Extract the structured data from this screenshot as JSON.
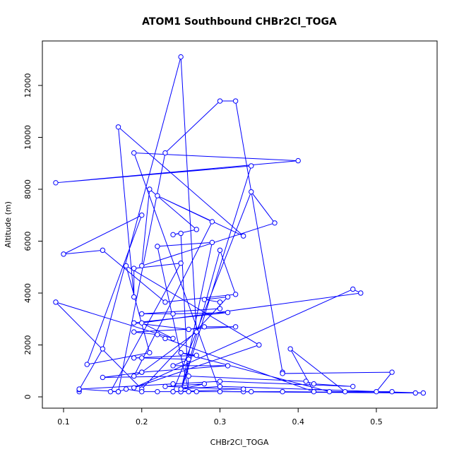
{
  "chart_data": {
    "type": "line",
    "title": "ATOM1 Southbound CHBr2Cl_TOGA",
    "x_label": "CHBr2Cl_TOGA",
    "y_label": "Altitude (m)",
    "x": [
      0.12,
      0.12,
      0.15,
      0.25,
      0.27,
      0.2,
      0.19,
      0.29,
      0.22,
      0.33,
      0.17,
      0.19,
      0.19,
      0.25,
      0.16,
      0.17,
      0.23,
      0.3,
      0.32,
      0.38,
      0.38,
      0.52,
      0.5,
      0.55,
      0.3,
      0.19,
      0.4,
      0.09,
      0.34,
      0.25,
      0.24,
      0.34,
      0.37,
      0.2,
      0.21,
      0.27,
      0.24,
      0.25,
      0.26,
      0.22,
      0.29,
      0.25,
      0.3,
      0.32,
      0.23,
      0.15,
      0.1,
      0.2,
      0.13,
      0.21,
      0.18,
      0.35,
      0.19,
      0.47,
      0.48,
      0.2,
      0.24,
      0.09,
      0.2,
      0.31,
      0.28,
      0.3,
      0.3,
      0.2,
      0.24,
      0.31,
      0.19,
      0.26,
      0.28,
      0.32,
      0.19,
      0.22,
      0.23,
      0.42,
      0.39,
      0.46,
      0.52,
      0.44,
      0.25,
      0.27,
      0.19,
      0.2,
      0.26,
      0.24,
      0.31,
      0.2,
      0.15,
      0.26,
      0.41,
      0.42,
      0.47,
      0.3,
      0.24,
      0.12,
      0.17,
      0.18,
      0.2,
      0.22,
      0.27,
      0.33,
      0.34,
      0.38,
      0.56,
      0.3,
      0.25,
      0.28,
      0.23,
      0.33,
      0.24
    ],
    "series": [
      {
        "color": "#0000ff",
        "values": [
          200,
          280,
          1850,
          13100,
          2500,
          950,
          800,
          6750,
          7750,
          6200,
          10400,
          3850,
          4950,
          5150,
          200,
          200,
          9400,
          11400,
          11400,
          950,
          900,
          950,
          200,
          150,
          200,
          9400,
          9100,
          8250,
          8900,
          200,
          200,
          7900,
          6700,
          5050,
          8000,
          6450,
          6250,
          6300,
          200,
          5800,
          5950,
          200,
          5650,
          3950,
          3650,
          5650,
          5500,
          7000,
          1250,
          1700,
          5050,
          2000,
          350,
          4150,
          4000,
          2850,
          2250,
          3650,
          300,
          3850,
          3750,
          3650,
          3400,
          3200,
          3200,
          3250,
          2850,
          2600,
          2700,
          2700,
          2500,
          2400,
          2250,
          200,
          1850,
          200,
          200,
          200,
          1700,
          1600,
          1500,
          1500,
          1450,
          1200,
          1200,
          950,
          750,
          800,
          600,
          500,
          400,
          600,
          500,
          300,
          200,
          300,
          200,
          200,
          200,
          200,
          200,
          200,
          150,
          400,
          300,
          500,
          400,
          300,
          200
        ]
      }
    ],
    "xlim": [
      0.0729,
      0.5777
    ],
    "xticks": [
      0.1,
      0.2,
      0.3,
      0.4,
      0.5
    ],
    "ylim": [
      -435,
      13714
    ],
    "yticks": [
      0,
      2000,
      4000,
      6000,
      8000,
      10000,
      12000
    ]
  }
}
